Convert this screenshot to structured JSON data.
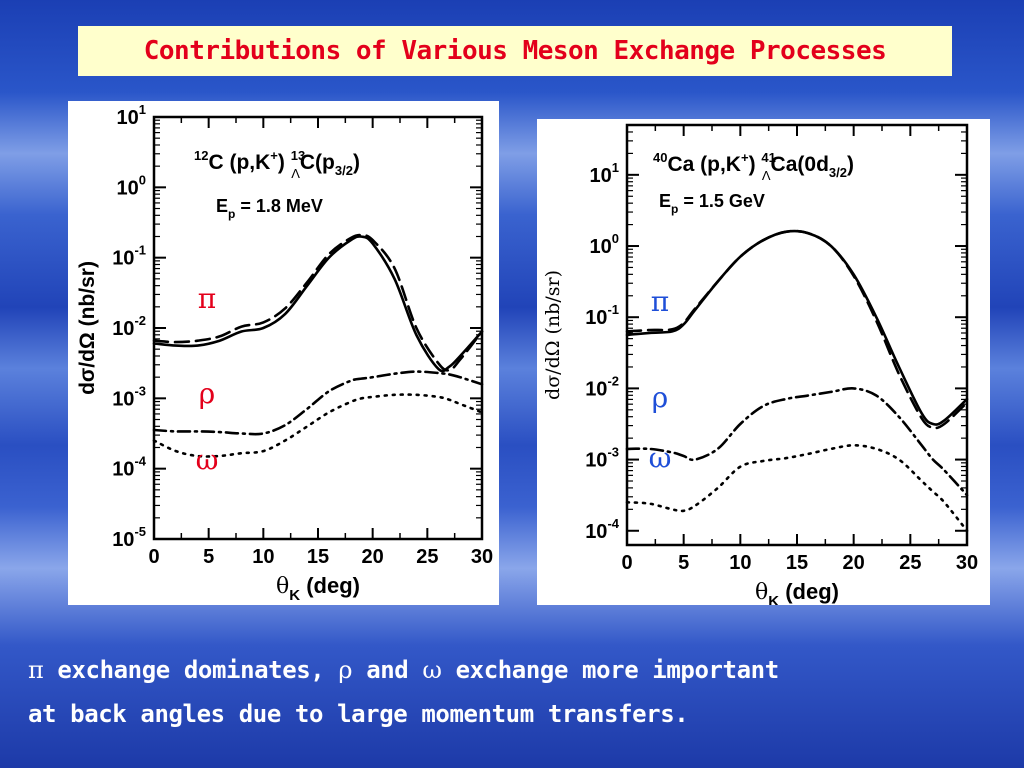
{
  "slide_title": "Contributions of Various Meson Exchange Processes",
  "caption": {
    "pi": "π",
    "t1": " exchange  dominates, ",
    "rho": "ρ",
    "t2": " and ",
    "omega": "ω",
    "t3": " exchange more important",
    "line2": "at back angles due to large momentum transfers."
  },
  "chart_data": [
    {
      "type": "line",
      "reaction": {
        "p1": "12",
        "p2": "C (p,K",
        "p3": "+",
        "p4": ") ",
        "p5": "13",
        "p6": "Λ",
        "p7": "C(p",
        "p8": "3/2",
        "p9": ")"
      },
      "energy": {
        "p1": "E",
        "p2": "p",
        "p3": " = 1.8 MeV"
      },
      "xlabel": {
        "sym": "θ",
        "sub": "K",
        "rest": " (deg)"
      },
      "ylabel": "dσ/dΩ (nb/sr)",
      "yscale": "log",
      "xlim": [
        0,
        30
      ],
      "ylim_exp": [
        -5,
        1
      ],
      "xticks": [
        "0",
        "5",
        "10",
        "15",
        "20",
        "25",
        "30"
      ],
      "yticks": [
        {
          "base": "10",
          "exp": "1"
        },
        {
          "base": "10",
          "exp": "0"
        },
        {
          "base": "10",
          "exp": "-1"
        },
        {
          "base": "10",
          "exp": "-2"
        },
        {
          "base": "10",
          "exp": "-3"
        },
        {
          "base": "10",
          "exp": "-4"
        },
        {
          "base": "10",
          "exp": "-5"
        }
      ],
      "labels": [
        {
          "text": "π",
          "color": "#e3001b",
          "y_log": -1.6
        },
        {
          "text": "ρ",
          "color": "#e3001b",
          "y_log": -2.95
        },
        {
          "text": "ω",
          "color": "#e3001b",
          "y_log": -3.9
        }
      ],
      "x": [
        0,
        2,
        4,
        6,
        8,
        10,
        12,
        14,
        16,
        18,
        19,
        20,
        22,
        24,
        26,
        27,
        28,
        30
      ],
      "series": [
        {
          "style": "solid",
          "y_log": [
            -2.22,
            -2.25,
            -2.25,
            -2.18,
            -2.05,
            -2.0,
            -1.8,
            -1.4,
            -1.0,
            -0.75,
            -0.7,
            -0.8,
            -1.3,
            -2.1,
            -2.58,
            -2.55,
            -2.4,
            -2.05
          ]
        },
        {
          "style": "dashed",
          "y_log": [
            -2.18,
            -2.2,
            -2.18,
            -2.12,
            -1.98,
            -1.92,
            -1.72,
            -1.35,
            -0.95,
            -0.72,
            -0.68,
            -0.75,
            -1.15,
            -2.0,
            -2.5,
            -2.6,
            -2.45,
            -2.05
          ]
        },
        {
          "style": "dashdot",
          "y_log": [
            -3.45,
            -3.47,
            -3.47,
            -3.48,
            -3.5,
            -3.5,
            -3.38,
            -3.15,
            -2.9,
            -2.75,
            -2.72,
            -2.7,
            -2.65,
            -2.62,
            -2.64,
            -2.66,
            -2.7,
            -2.8
          ]
        },
        {
          "style": "dotted",
          "y_log": [
            -3.6,
            -3.75,
            -3.82,
            -3.82,
            -3.78,
            -3.75,
            -3.6,
            -3.4,
            -3.2,
            -3.05,
            -3.0,
            -2.98,
            -2.95,
            -2.95,
            -2.98,
            -3.02,
            -3.08,
            -3.2
          ]
        }
      ]
    },
    {
      "type": "line",
      "reaction": {
        "p1": "40",
        "p2": "Ca (p,K",
        "p3": "+",
        "p4": ") ",
        "p5": "41",
        "p6": "Λ",
        "p7": "Ca(0d",
        "p8": "3/2",
        "p9": ")"
      },
      "energy": {
        "p1": "E",
        "p2": "p",
        "p3": " = 1.5 GeV"
      },
      "xlabel": {
        "sym": "θ",
        "sub": "K",
        "rest": " (deg)"
      },
      "ylabel": "dσ/dΩ (nb/sr)",
      "yscale": "log",
      "xlim": [
        0,
        30
      ],
      "ylim_exp": [
        -4.2,
        1.7
      ],
      "xticks": [
        "0",
        "5",
        "10",
        "15",
        "20",
        "25",
        "30"
      ],
      "yticks": [
        {
          "base": "10",
          "exp": "1"
        },
        {
          "base": "10",
          "exp": "0"
        },
        {
          "base": "10",
          "exp": "-1"
        },
        {
          "base": "10",
          "exp": "-2"
        },
        {
          "base": "10",
          "exp": "-3"
        },
        {
          "base": "10",
          "exp": "-4"
        }
      ],
      "labels": [
        {
          "text": "π",
          "color": "#1f4fd8",
          "y_log": -0.8
        },
        {
          "text": "ρ",
          "color": "#1f4fd8",
          "y_log": -2.15
        },
        {
          "text": "ω",
          "color": "#1f4fd8",
          "y_log": -3.0
        }
      ],
      "x": [
        0,
        2,
        4,
        5,
        6,
        8,
        10,
        12,
        14,
        16,
        18,
        20,
        22,
        24,
        26,
        27,
        28,
        30
      ],
      "series": [
        {
          "style": "solid",
          "y_log": [
            -1.25,
            -1.22,
            -1.2,
            -1.1,
            -0.9,
            -0.5,
            -0.15,
            0.08,
            0.2,
            0.18,
            0.0,
            -0.4,
            -1.0,
            -1.7,
            -2.35,
            -2.5,
            -2.45,
            -2.15
          ]
        },
        {
          "style": "dashed",
          "y_log": [
            -1.2,
            -1.18,
            -1.17,
            -1.08,
            -0.88,
            -0.5,
            -0.15,
            0.08,
            0.2,
            0.18,
            0.0,
            -0.42,
            -1.05,
            -1.8,
            -2.42,
            -2.55,
            -2.5,
            -2.2
          ]
        },
        {
          "style": "dashdot",
          "y_log": [
            -2.85,
            -2.85,
            -2.9,
            -2.95,
            -3.0,
            -2.85,
            -2.5,
            -2.25,
            -2.15,
            -2.1,
            -2.05,
            -2.0,
            -2.1,
            -2.4,
            -2.8,
            -3.0,
            -3.15,
            -3.5
          ]
        },
        {
          "style": "dotted",
          "y_log": [
            -3.6,
            -3.62,
            -3.7,
            -3.72,
            -3.65,
            -3.4,
            -3.1,
            -3.02,
            -2.98,
            -2.92,
            -2.85,
            -2.8,
            -2.85,
            -3.0,
            -3.3,
            -3.45,
            -3.6,
            -4.0
          ]
        }
      ]
    }
  ]
}
